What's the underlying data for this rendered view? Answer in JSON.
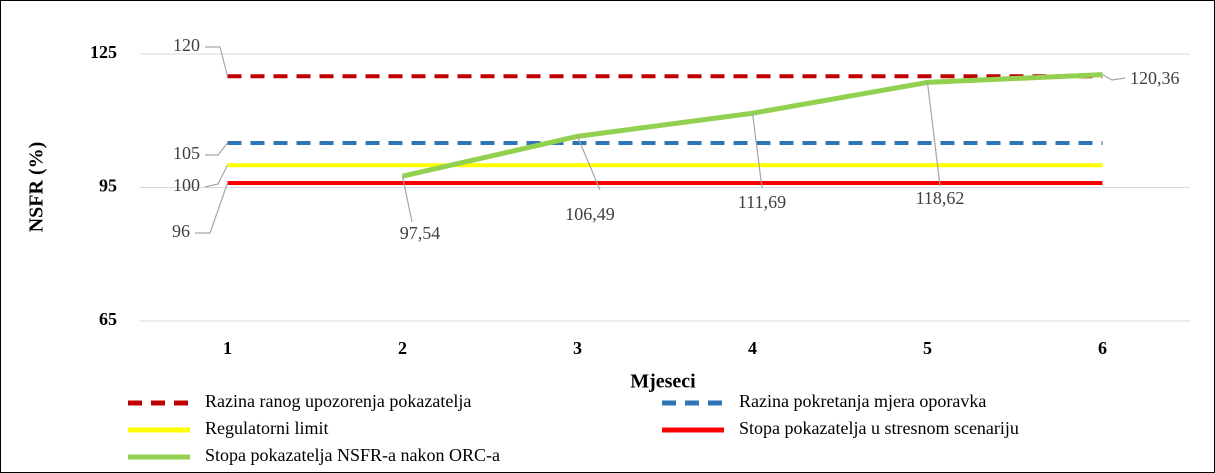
{
  "chart_data": {
    "type": "line",
    "x_label": "Mjeseci",
    "y_label": "NSFR (%)",
    "categories": [
      "1",
      "2",
      "3",
      "4",
      "5",
      "6"
    ],
    "ylim": [
      65,
      125
    ],
    "yticks": [
      65,
      95,
      125
    ],
    "grid": true,
    "series": [
      {
        "name": "Razina ranog upozorenja pokazatelja",
        "color": "#c00000",
        "dashed": true,
        "values": [
          120,
          120,
          120,
          120,
          120,
          120
        ],
        "value_labels": [
          "120",
          null,
          null,
          null,
          null,
          null
        ]
      },
      {
        "name": "Razina pokretanja mjera oporavka",
        "color": "#2e75b6",
        "dashed": true,
        "values": [
          105,
          105,
          105,
          105,
          105,
          105
        ],
        "value_labels": [
          "105",
          null,
          null,
          null,
          null,
          null
        ]
      },
      {
        "name": "Regulatorni limit",
        "color": "#ffff00",
        "dashed": false,
        "values": [
          100,
          100,
          100,
          100,
          100,
          100
        ],
        "value_labels": [
          "100",
          null,
          null,
          null,
          null,
          null
        ]
      },
      {
        "name": "Stopa pokazatelja u stresnom scenariju",
        "color": "#ff0000",
        "dashed": false,
        "values": [
          96,
          96,
          96,
          96,
          96,
          96
        ],
        "value_labels": [
          "96",
          null,
          null,
          null,
          null,
          null
        ]
      },
      {
        "name": "Stopa pokazatelja NSFR-a nakon ORC-a",
        "color": "#92d050",
        "dashed": false,
        "values": [
          null,
          97.54,
          106.49,
          111.69,
          118.62,
          120.36
        ],
        "value_labels": [
          null,
          "97,54",
          "106,49",
          "111,69",
          "118,62",
          "120,36"
        ]
      }
    ]
  }
}
